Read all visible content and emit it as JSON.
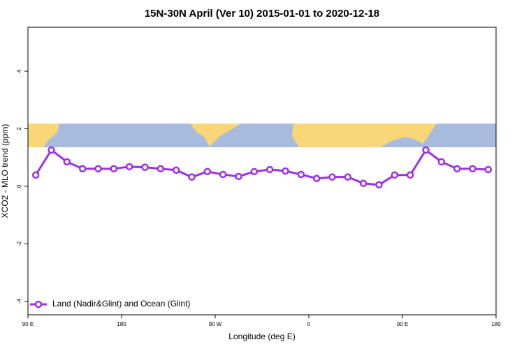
{
  "chart_data": {
    "type": "line",
    "title": "15N-30N April (Ver 10)   2015-01-01 to 2020-12-18",
    "x_label": "Longitude (deg E)",
    "y_label": "XCO2 - MLO trend (ppm)",
    "x": [
      97.5,
      112.5,
      127.5,
      142.5,
      157.5,
      172.5,
      187.5,
      202.5,
      217.5,
      232.5,
      247.5,
      262.5,
      277.5,
      292.5,
      307.5,
      322.5,
      337.5,
      352.5,
      367.5,
      382.5,
      397.5,
      412.5,
      427.5,
      442.5,
      457.5,
      472.5,
      487.5,
      502.5,
      517.5,
      532.5
    ],
    "series": [
      {
        "name": "Land (Nadir&Glint) and Ocean (Glint)",
        "color": "#9b30e8",
        "values": [
          0.39,
          1.26,
          0.85,
          0.61,
          0.61,
          0.61,
          0.68,
          0.66,
          0.61,
          0.56,
          0.32,
          0.51,
          0.41,
          0.34,
          0.51,
          0.58,
          0.53,
          0.41,
          0.27,
          0.32,
          0.32,
          0.1,
          0.05,
          0.39,
          0.39,
          1.26,
          0.85,
          0.61,
          0.61,
          0.58
        ]
      }
    ],
    "xlim": [
      90,
      540
    ],
    "xticks": [
      {
        "value": 90,
        "label": "90 E"
      },
      {
        "value": 180,
        "label": "180"
      },
      {
        "value": 270,
        "label": "90 W"
      },
      {
        "value": 360,
        "label": "0"
      },
      {
        "value": 450,
        "label": "90 E"
      },
      {
        "value": 540,
        "label": "180"
      }
    ],
    "ylim": [
      -4.47,
      5.53
    ],
    "yticks": [
      -4,
      -2,
      0,
      2,
      4
    ],
    "legend": "bottom-left"
  }
}
